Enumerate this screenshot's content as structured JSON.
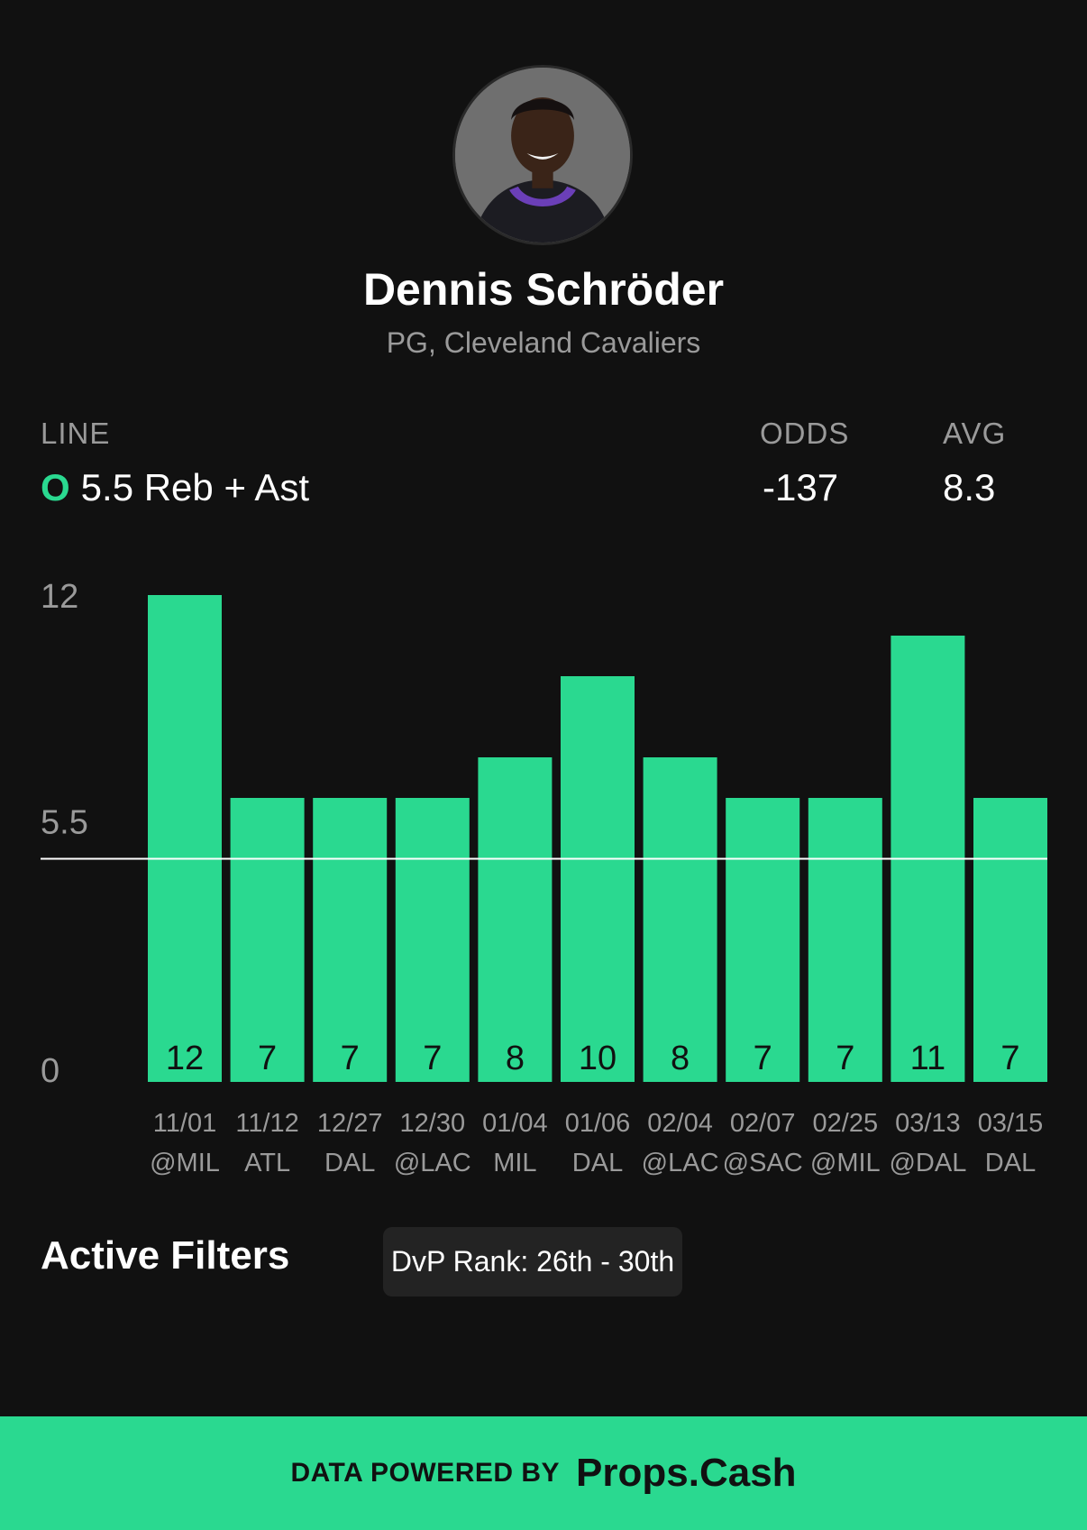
{
  "player": {
    "name": "Dennis Schröder",
    "position_team": "PG, Cleveland Cavaliers"
  },
  "stats": {
    "line_label": "LINE",
    "line_indicator": "O",
    "line_value": "5.5 Reb + Ast",
    "odds_label": "ODDS",
    "odds_value": "-137",
    "avg_label": "AVG",
    "avg_value": "8.3"
  },
  "chart_data": {
    "type": "bar",
    "categories": [
      "11/01 @MIL",
      "11/12 ATL",
      "12/27 DAL",
      "12/30 @LAC",
      "01/04 MIL",
      "01/06 DAL",
      "02/04 @LAC",
      "02/07 @SAC",
      "02/25 @MIL",
      "03/13 @DAL",
      "03/15 DAL"
    ],
    "dates": [
      "11/01",
      "11/12",
      "12/27",
      "12/30",
      "01/04",
      "01/06",
      "02/04",
      "02/07",
      "02/25",
      "03/13",
      "03/15"
    ],
    "opponents": [
      "@MIL",
      "ATL",
      "DAL",
      "@LAC",
      "MIL",
      "DAL",
      "@LAC",
      "@SAC",
      "@MIL",
      "@DAL",
      "DAL"
    ],
    "values": [
      12,
      7,
      7,
      7,
      8,
      10,
      8,
      7,
      7,
      11,
      7
    ],
    "line": 5.5,
    "yticks": [
      "12",
      "5.5",
      "0"
    ],
    "ylim": [
      0,
      12
    ],
    "bar_color": "#2ad990",
    "line_color": "#ffffff"
  },
  "filters": {
    "title": "Active Filters",
    "items": [
      "DvP Rank: 26th - 30th"
    ]
  },
  "footer": {
    "powered_by": "DATA POWERED BY",
    "brand": "Props.Cash"
  },
  "colors": {
    "background": "#111111",
    "accent": "#2ad990",
    "muted": "#9a9a9a",
    "chip": "#232323"
  }
}
